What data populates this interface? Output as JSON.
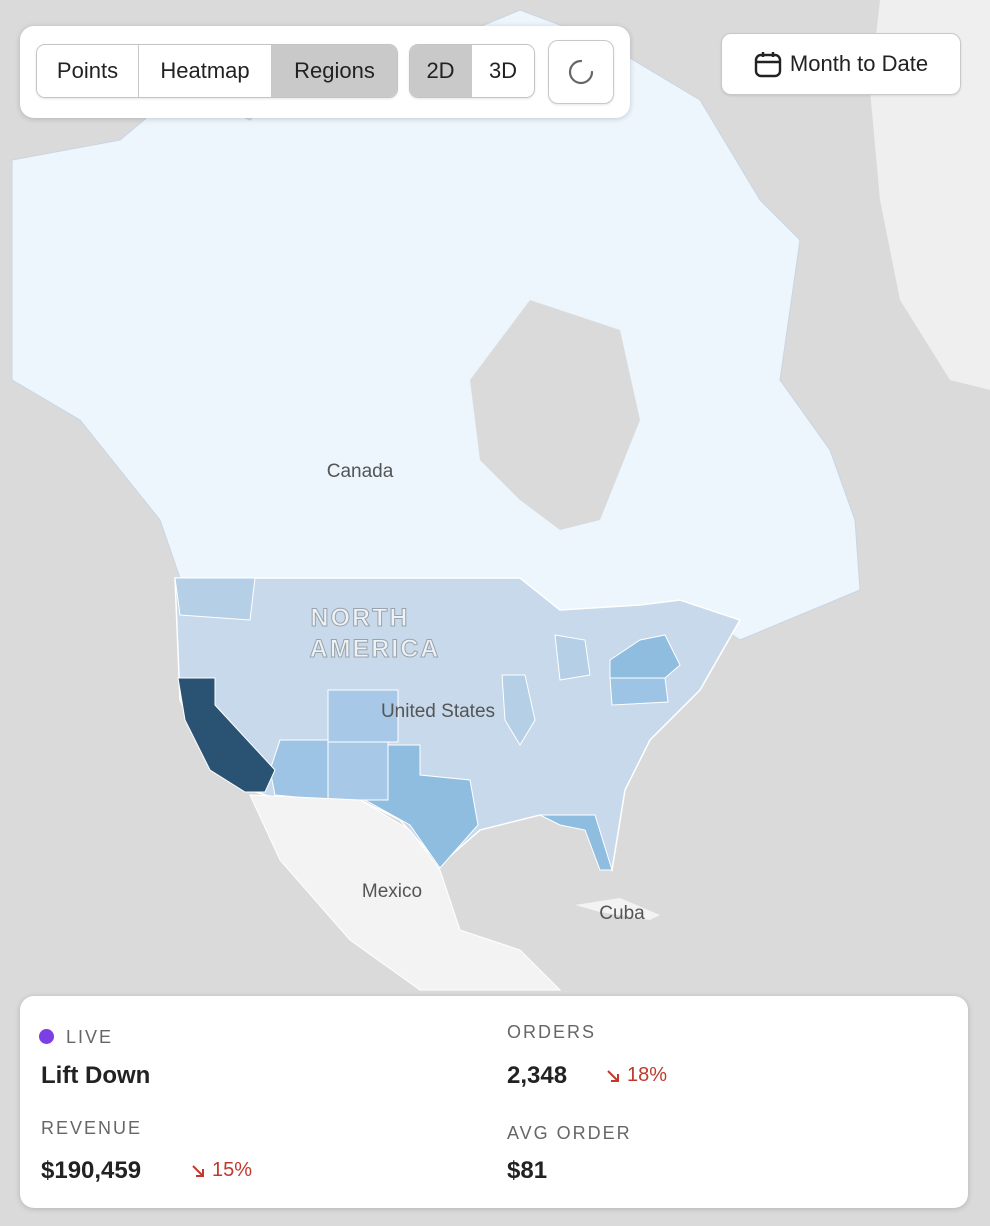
{
  "toolbar": {
    "modes": [
      "Points",
      "Heatmap",
      "Regions"
    ],
    "dimensions": [
      "2D",
      "3D"
    ],
    "date_range": "Month to Date"
  },
  "map": {
    "labels": [
      "Canada",
      "NORTH",
      "AMERICA",
      "United States",
      "Mexico",
      "Cuba"
    ]
  },
  "stats": {
    "status": "LIVE",
    "name": "Lift Down",
    "metrics": [
      {
        "label": "REVENUE",
        "value": "$190,459",
        "change": "15%"
      },
      {
        "label": "ORDERS",
        "value": "2,348",
        "change": "18%"
      },
      {
        "label": "AVG ORDER",
        "value": "$81"
      }
    ]
  }
}
